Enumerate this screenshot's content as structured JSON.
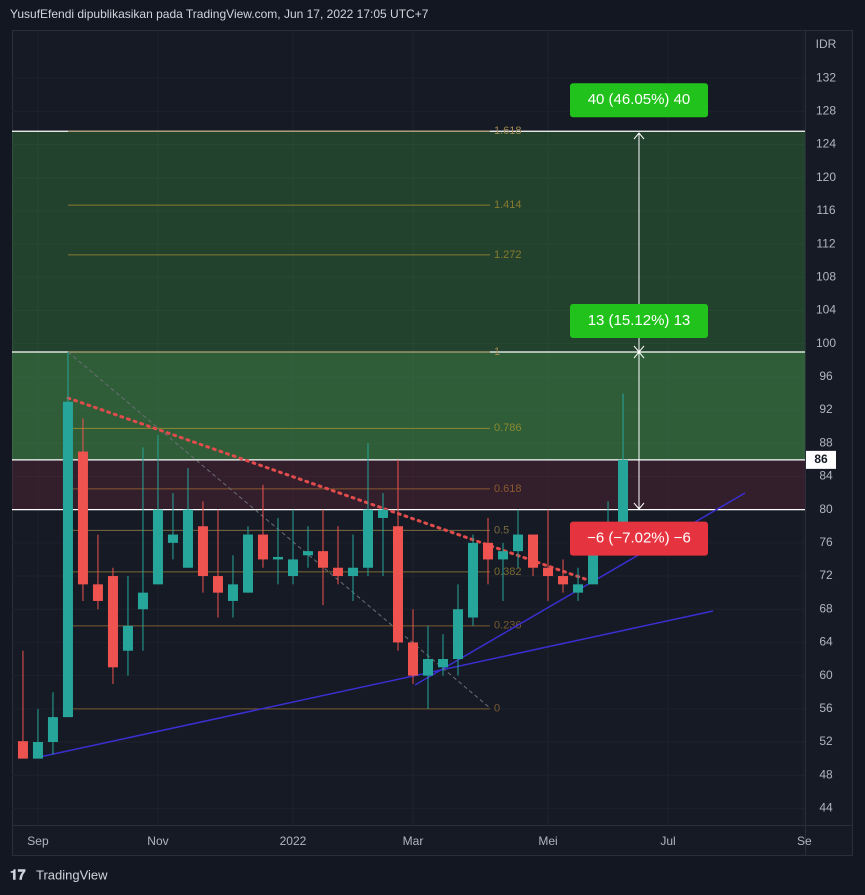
{
  "header": {
    "text": "YusufEfendi dipublikasikan pada TradingView.com, Jun 17, 2022 17:05 UTC+7"
  },
  "chart_data": {
    "type": "candlestick",
    "y_unit": "IDR",
    "x": [
      0,
      1,
      2,
      3,
      4,
      5,
      6,
      7,
      8,
      9,
      10,
      11,
      12,
      13,
      14,
      15,
      16,
      17,
      18,
      19,
      20,
      21,
      22,
      23,
      24,
      25,
      26,
      27,
      28,
      29,
      30,
      31,
      32,
      33,
      34,
      35,
      36,
      37,
      38,
      39,
      40
    ],
    "open": [
      52.1,
      50,
      52,
      55,
      87,
      71,
      72,
      63,
      68,
      71,
      76,
      73,
      78,
      72,
      69,
      70,
      77,
      74,
      72,
      74.5,
      75,
      73,
      72,
      73,
      79,
      78,
      64,
      60,
      61,
      62,
      67,
      76,
      74,
      75,
      77,
      73,
      72,
      70,
      71,
      77,
      78
    ],
    "high": [
      63,
      56,
      58,
      99,
      91,
      77,
      73,
      72,
      87.5,
      89,
      82,
      85,
      81,
      80,
      74.5,
      78,
      83,
      79,
      80,
      78,
      80,
      78,
      77,
      88,
      82,
      86,
      68,
      66,
      65,
      71,
      77,
      79,
      76,
      80,
      77,
      80,
      74,
      73,
      78,
      81,
      94
    ],
    "low": [
      50,
      50,
      50.5,
      55,
      69,
      68,
      59,
      60,
      63,
      71,
      74,
      73,
      70,
      67,
      67,
      70,
      73,
      71,
      71,
      73,
      68.5,
      71,
      69,
      72,
      72,
      63,
      59,
      56,
      60,
      60,
      66,
      71,
      69,
      73,
      72,
      69,
      70,
      69,
      71,
      77,
      78
    ],
    "close": [
      50,
      52,
      55,
      93,
      71,
      69,
      61,
      66,
      70,
      80,
      77,
      80,
      72,
      70,
      71,
      77,
      74,
      74.3,
      74,
      75,
      73,
      72,
      73,
      80,
      80,
      64,
      60,
      62,
      62,
      68,
      76,
      74,
      75,
      77,
      73,
      72,
      71,
      71,
      77,
      78,
      86
    ],
    "up_color": "#26a69a",
    "down_color": "#ef5350",
    "xlim": [
      -0.73,
      52.13
    ],
    "xticks": [
      {
        "value": 1,
        "label": "Sep"
      },
      {
        "value": 9,
        "label": "Nov"
      },
      {
        "value": 18,
        "label": "2022"
      },
      {
        "value": 26,
        "label": "Mar"
      },
      {
        "value": 35,
        "label": "Mei"
      },
      {
        "value": 43,
        "label": "Jul"
      },
      {
        "value": 52,
        "label": "Se"
      }
    ],
    "ylim": [
      42,
      137.8
    ],
    "yticks": [
      44,
      48,
      52,
      56,
      60,
      64,
      68,
      72,
      76,
      80,
      84,
      88,
      92,
      96,
      100,
      104,
      108,
      112,
      116,
      120,
      124,
      128,
      132
    ],
    "last_price": 86,
    "fib": {
      "ratios": [
        1.618,
        1.414,
        1.272,
        1,
        0.786,
        0.618,
        0.5,
        0.382,
        0.236,
        0
      ],
      "prices": [
        125.6,
        116.7,
        110.7,
        99,
        89.8,
        82.5,
        77.5,
        72.5,
        66,
        56
      ]
    },
    "position": {
      "levels": [
        125.6,
        99,
        86,
        80
      ],
      "labels": [
        "40 (46.05%) 40",
        "13 (15.12%) 13",
        "−6 (−7.02%) −6"
      ],
      "label_colors": [
        "#22c21c",
        "#22c21c",
        "#e5343f"
      ]
    }
  },
  "footer": {
    "brand": "TradingView"
  }
}
